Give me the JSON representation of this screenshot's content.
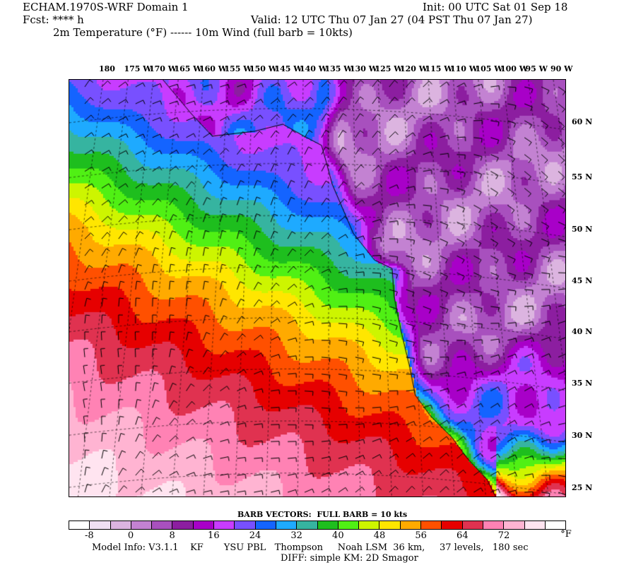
{
  "header": {
    "title": "ECHAM.1970S-WRF Domain 1",
    "init": "Init: 00 UTC Sat 01 Sep 18",
    "fcst": "Fcst: **** h",
    "valid": "Valid: 12 UTC Thu 07 Jan 27 (04 PST Thu 07 Jan 27)",
    "fields": "2m Temperature (°F) ------ 10m Wind (full barb = 10kts)"
  },
  "map": {
    "lon_labels": [
      "180",
      "175 W",
      "170 W",
      "165 W",
      "160 W",
      "155 W",
      "150 W",
      "145 W",
      "140 W",
      "135 W",
      "130 W",
      "125 W",
      "120 W",
      "115 W",
      "110 W",
      "105 W",
      "100 W",
      "95 W",
      "90 W"
    ],
    "lat_labels": [
      "60 N",
      "55 N",
      "50 N",
      "45 N",
      "40 N",
      "35 N",
      "30 N",
      "25 N"
    ]
  },
  "legend": {
    "barb_title": "BARB VECTORS:  FULL BARB = 10 kts",
    "colors": [
      "#ffffff",
      "#f0e0f4",
      "#dcb4e0",
      "#c382d2",
      "#a850be",
      "#8c1ea0",
      "#a800c8",
      "#c83cff",
      "#7850ff",
      "#1464ff",
      "#1eaaff",
      "#36b4a0",
      "#1ebe1e",
      "#50f014",
      "#cdf500",
      "#ffe600",
      "#ffaa00",
      "#ff5000",
      "#e60000",
      "#e03250",
      "#ff82b4",
      "#ffb4d2",
      "#ffe4f0",
      "#ffffff"
    ],
    "labels": [
      "-8",
      "0",
      "8",
      "16",
      "24",
      "32",
      "40",
      "48",
      "56",
      "64",
      "72"
    ],
    "unit": "°F",
    "model_info": "Model Info: V3.1.1    KF       YSU PBL   Thompson     Noah LSM  36 km,     37 levels,   180 sec",
    "diff": "DIFF: simple KM: 2D Smagor"
  }
}
